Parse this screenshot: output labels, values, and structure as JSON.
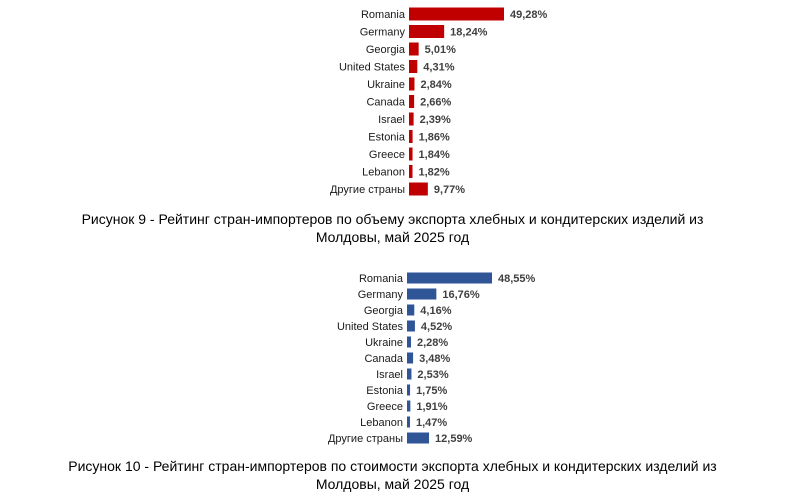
{
  "chart_data": [
    {
      "type": "bar",
      "orientation": "horizontal",
      "color": "#c00000",
      "categories": [
        "Romania",
        "Germany",
        "Georgia",
        "United States",
        "Ukraine",
        "Canada",
        "Israel",
        "Estonia",
        "Greece",
        "Lebanon",
        "Другие страны"
      ],
      "values": [
        49.28,
        18.24,
        5.01,
        4.31,
        2.84,
        2.66,
        2.39,
        1.86,
        1.84,
        1.82,
        9.77
      ],
      "value_labels": [
        "49,28%",
        "18,24%",
        "5,01%",
        "4,31%",
        "2,84%",
        "2,66%",
        "2,39%",
        "1,86%",
        "1,84%",
        "1,82%",
        "9,77%"
      ],
      "grid": false,
      "legend": "none"
    },
    {
      "type": "bar",
      "orientation": "horizontal",
      "color": "#2f5597",
      "categories": [
        "Romania",
        "Germany",
        "Georgia",
        "United States",
        "Ukraine",
        "Canada",
        "Israel",
        "Estonia",
        "Greece",
        "Lebanon",
        "Другие страны"
      ],
      "values": [
        48.55,
        16.76,
        4.16,
        4.52,
        2.28,
        3.48,
        2.53,
        1.75,
        1.91,
        1.47,
        12.59
      ],
      "value_labels": [
        "48,55%",
        "16,76%",
        "4,16%",
        "4,52%",
        "2,28%",
        "3,48%",
        "2,53%",
        "1,75%",
        "1,91%",
        "1,47%",
        "12,59%"
      ],
      "grid": false,
      "legend": "none"
    }
  ],
  "captions": [
    {
      "line1": "Рисунок 9 - Рейтинг стран-импортеров по объему экспорта хлебных и кондитерских изделий из",
      "line2": "Молдовы, май 2025 год"
    },
    {
      "line1": "Рисунок 10 - Рейтинг стран-импортеров по стоимости экспорта хлебных и кондитерских изделий из",
      "line2": "Молдовы, май 2025 год"
    }
  ]
}
